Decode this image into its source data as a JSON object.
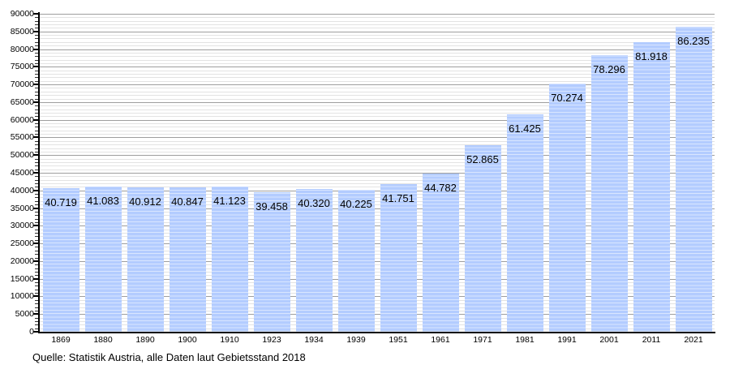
{
  "caption": "Quelle: Statistik Austria, alle Daten laut Gebietsstand 2018",
  "colors": {
    "bar": "#b3ccff",
    "bar_stripe": "rgba(255,255,255,0.5)",
    "grid_major": "#9e9e9e",
    "grid_minor": "#e3e3e3",
    "axis": "#000000",
    "text": "#000000"
  },
  "chart_data": {
    "type": "bar",
    "title": "",
    "xlabel": "",
    "ylabel": "",
    "categories": [
      "1869",
      "1880",
      "1890",
      "1900",
      "1910",
      "1923",
      "1934",
      "1939",
      "1951",
      "1961",
      "1971",
      "1981",
      "1991",
      "2001",
      "2011",
      "2021"
    ],
    "values": [
      40719,
      41083,
      40912,
      40847,
      41123,
      39458,
      40320,
      40225,
      41751,
      44782,
      52865,
      61425,
      70274,
      78296,
      81918,
      86235
    ],
    "bar_labels": [
      "40.719",
      "41.083",
      "40.912",
      "40.847",
      "41.123",
      "39.458",
      "40.320",
      "40.225",
      "41.751",
      "44.782",
      "52.865",
      "61.425",
      "70.274",
      "78.296",
      "81.918",
      "86.235"
    ],
    "y_ticks": [
      "0",
      "5000",
      "10000",
      "15000",
      "20000",
      "25000",
      "30000",
      "35000",
      "40000",
      "45000",
      "50000",
      "55000",
      "60000",
      "65000",
      "70000",
      "75000",
      "80000",
      "85000",
      "90000"
    ],
    "ylim": [
      0,
      90000
    ],
    "y_major_step": 5000,
    "y_minor_step": 1000,
    "grid": "on",
    "legend": "none"
  }
}
